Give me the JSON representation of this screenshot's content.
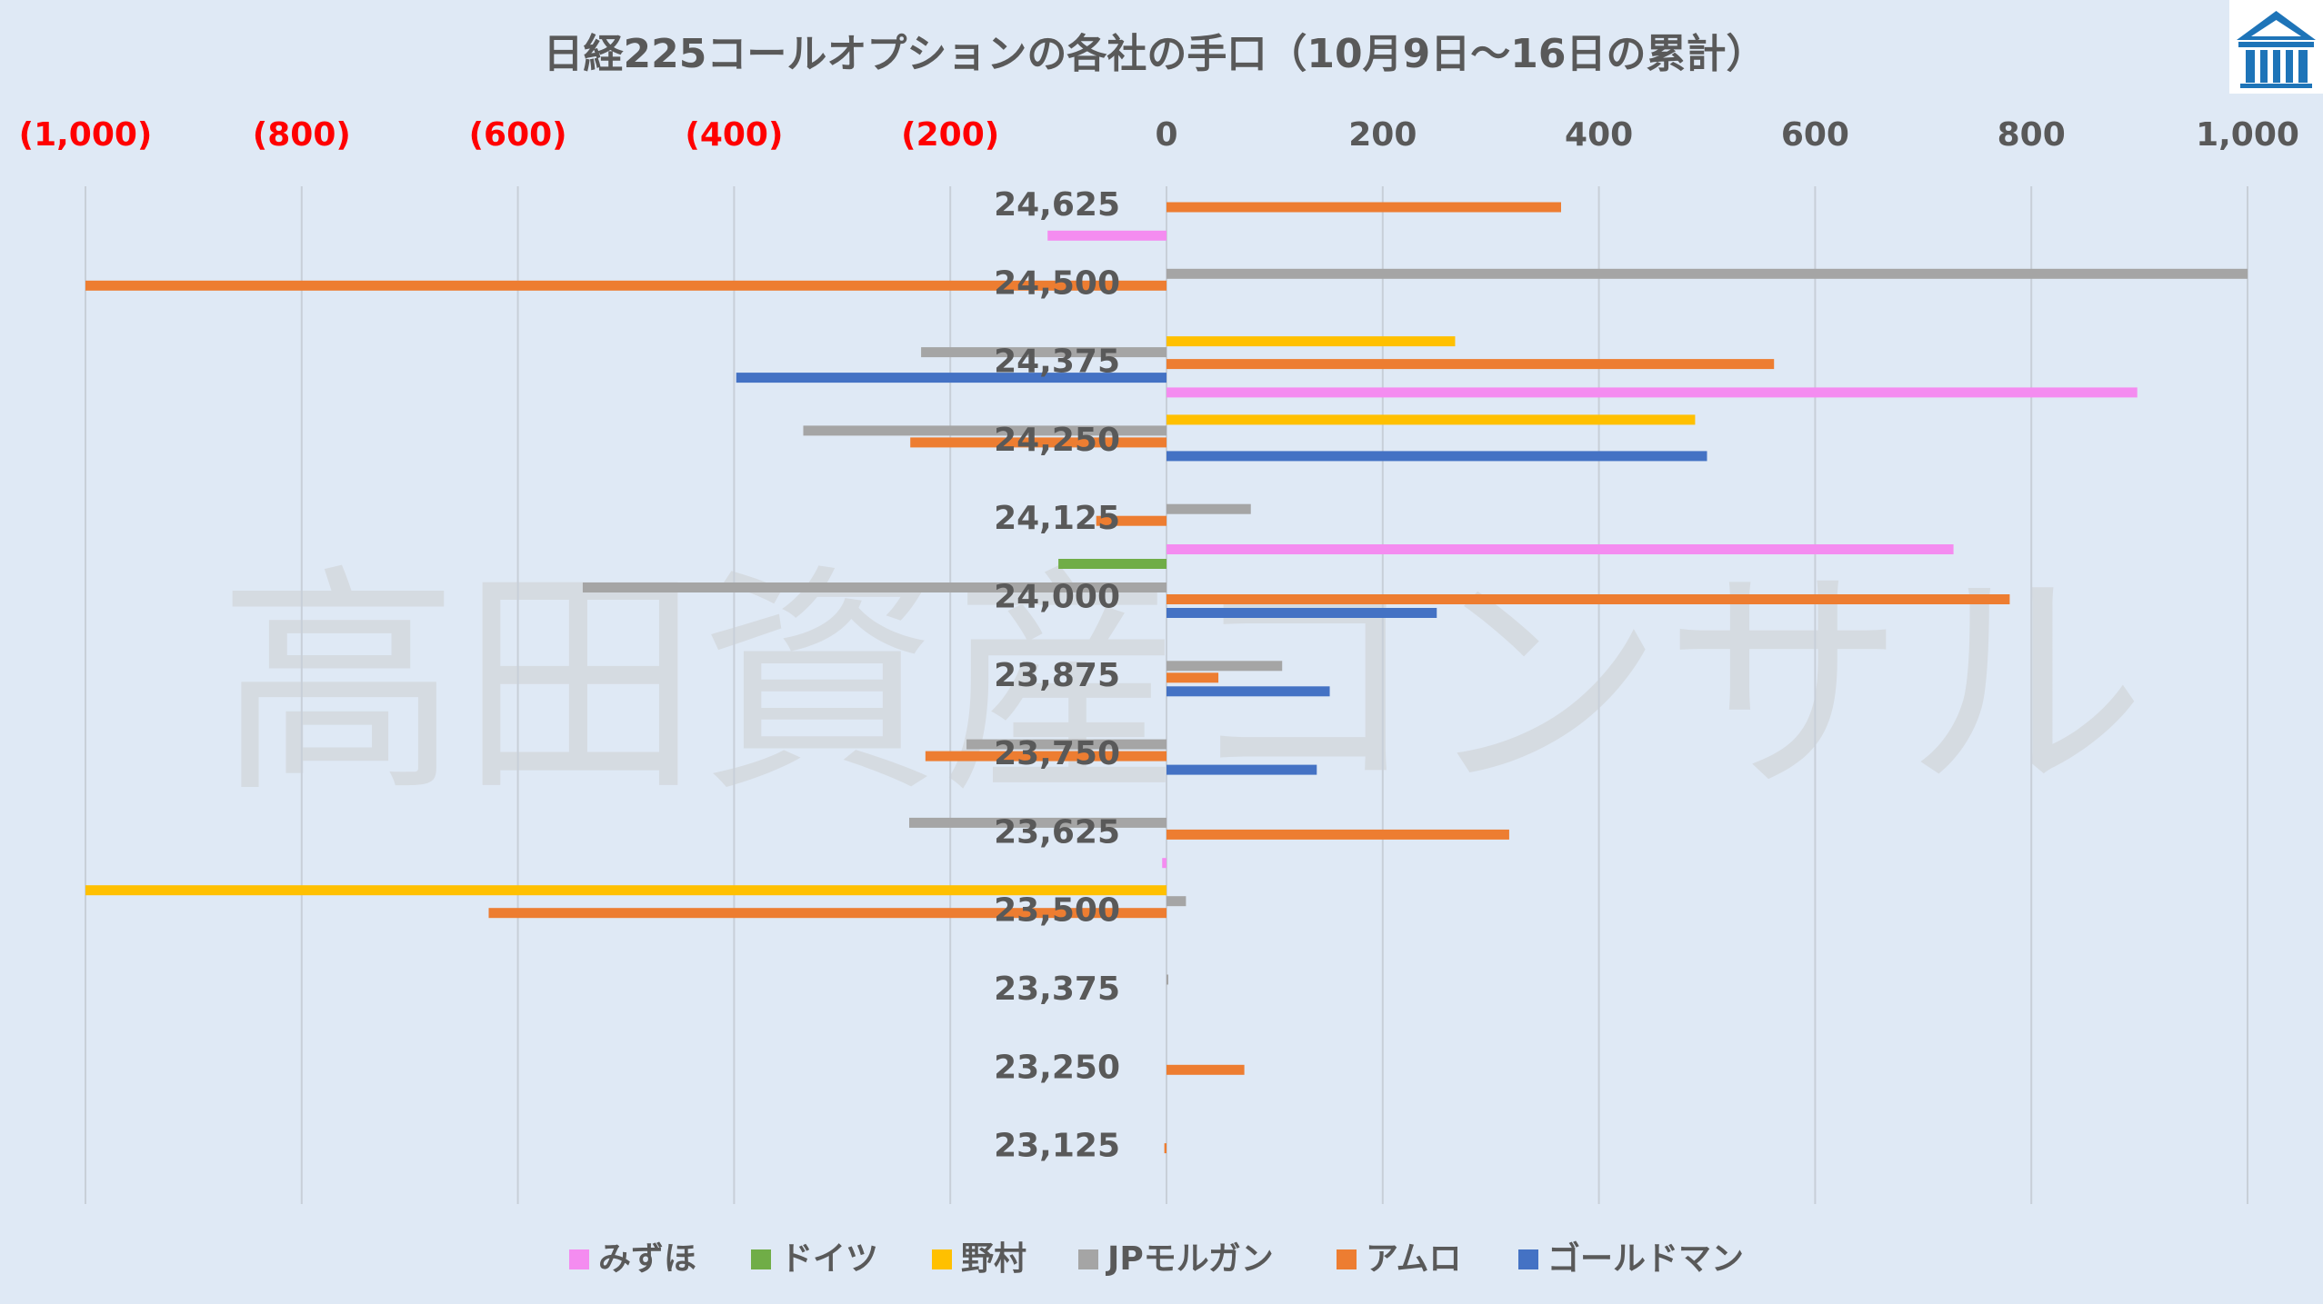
{
  "chart_data": {
    "type": "bar",
    "orientation": "horizontal",
    "title": "日経225コールオプションの各社の手口（10月9日～16日の累計）",
    "watermark": "高田資産コンサル",
    "xlim": [
      -1000,
      1000
    ],
    "x_ticks": [
      {
        "value": -1000,
        "label": "(1,000)",
        "color": "#ff0000"
      },
      {
        "value": -800,
        "label": "(800)",
        "color": "#ff0000"
      },
      {
        "value": -600,
        "label": "(600)",
        "color": "#ff0000"
      },
      {
        "value": -400,
        "label": "(400)",
        "color": "#ff0000"
      },
      {
        "value": -200,
        "label": "(200)",
        "color": "#ff0000"
      },
      {
        "value": 0,
        "label": "0",
        "color": "#595959"
      },
      {
        "value": 200,
        "label": "200",
        "color": "#595959"
      },
      {
        "value": 400,
        "label": "400",
        "color": "#595959"
      },
      {
        "value": 600,
        "label": "600",
        "color": "#595959"
      },
      {
        "value": 800,
        "label": "800",
        "color": "#595959"
      },
      {
        "value": 1000,
        "label": "1,000",
        "color": "#595959"
      }
    ],
    "axis_position": "top",
    "grid": true,
    "legend_position": "bottom",
    "categories": [
      "24,625",
      "24,500",
      "24,375",
      "24,250",
      "24,125",
      "24,000",
      "23,875",
      "23,750",
      "23,625",
      "23,500",
      "23,375",
      "23,250",
      "23,125"
    ],
    "series": [
      {
        "name": "みずほ",
        "color": "#f48cf0",
        "values": [
          0,
          -110,
          0,
          898,
          0,
          728,
          0,
          0,
          0,
          -4,
          0,
          0,
          0
        ]
      },
      {
        "name": "ドイツ",
        "color": "#70ad47",
        "values": [
          0,
          0,
          0,
          0,
          0,
          -100,
          0,
          0,
          0,
          0,
          0,
          0,
          0
        ]
      },
      {
        "name": "野村",
        "color": "#ffc000",
        "values": [
          0,
          0,
          267,
          489,
          0,
          0,
          0,
          0,
          0,
          -1000,
          0,
          0,
          0
        ]
      },
      {
        "name": "JPモルガン",
        "color": "#a5a5a5",
        "values": [
          0,
          1000,
          -227,
          -336,
          78,
          -540,
          107,
          -185,
          -238,
          18,
          1,
          0,
          0
        ]
      },
      {
        "name": "アムロ",
        "color": "#ed7d31",
        "values": [
          365,
          -1000,
          562,
          -237,
          -65,
          780,
          48,
          -223,
          317,
          -627,
          0,
          72,
          -2
        ]
      },
      {
        "name": "ゴールドマン",
        "color": "#4472c4",
        "values": [
          0,
          0,
          -398,
          500,
          0,
          250,
          151,
          139,
          0,
          0,
          0,
          0,
          0
        ]
      }
    ]
  }
}
